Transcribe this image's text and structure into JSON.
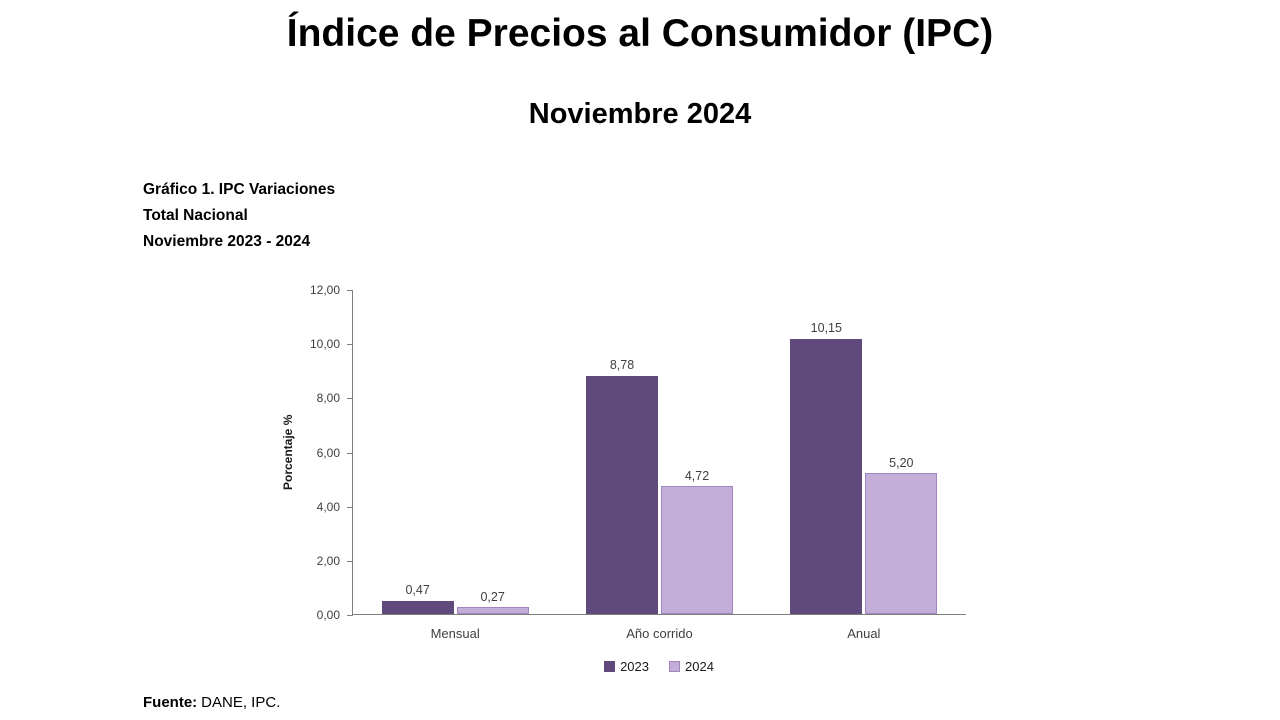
{
  "header": {
    "title": "Índice de Precios al Consumidor (IPC)",
    "subtitle": "Noviembre 2024"
  },
  "caption": {
    "line1": "Gráfico 1. IPC Variaciones",
    "line2": "Total Nacional",
    "line3": "Noviembre 2023 - 2024"
  },
  "chart_data": {
    "type": "bar",
    "title": "Gráfico 1. IPC Variaciones Total Nacional Noviembre 2023 - 2024",
    "categories": [
      "Mensual",
      "Año corrido",
      "Anual"
    ],
    "series": [
      {
        "name": "2023",
        "color": "#5f4a7b",
        "values": [
          0.47,
          8.78,
          10.15
        ],
        "value_labels": [
          "0,47",
          "8,78",
          "10,15"
        ]
      },
      {
        "name": "2024",
        "color": "#c2aed8",
        "border_color": "#9f86bf",
        "values": [
          0.27,
          4.72,
          5.2
        ],
        "value_labels": [
          "0,27",
          "4,72",
          "5,20"
        ]
      }
    ],
    "xlabel": "",
    "ylabel": "Porcentaje %",
    "ylim": [
      0,
      12
    ],
    "ytick_values": [
      0,
      2,
      4,
      6,
      8,
      10,
      12
    ],
    "ytick_labels": [
      "0,00",
      "2,00",
      "4,00",
      "6,00",
      "8,00",
      "10,00",
      "12,00"
    ],
    "grid": false,
    "legend_position": "bottom"
  },
  "source": {
    "label": "Fuente:",
    "text": "DANE, IPC."
  }
}
